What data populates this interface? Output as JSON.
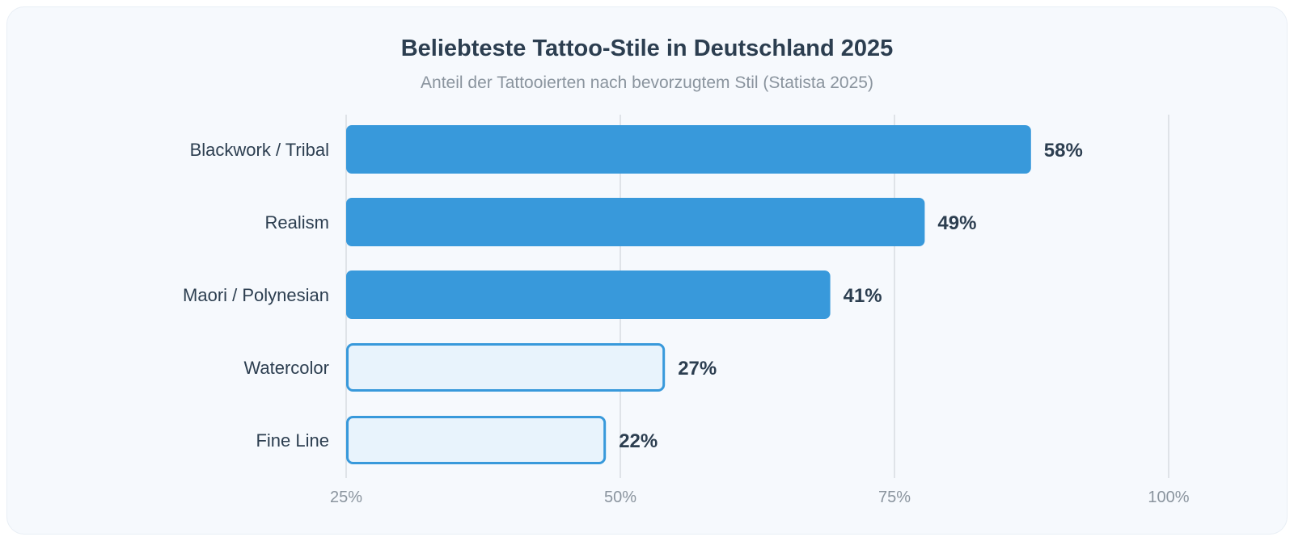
{
  "chart_data": {
    "type": "bar",
    "orientation": "horizontal",
    "title": "Beliebteste Tattoo-Stile in Deutschland 2025",
    "subtitle": "Anteil der Tattooierten nach bevorzugtem Stil (Statista 2025)",
    "categories": [
      "Blackwork / Tribal",
      "Realism",
      "Maori / Polynesian",
      "Watercolor",
      "Fine Line"
    ],
    "values": [
      58,
      49,
      41,
      27,
      22
    ],
    "data_labels": [
      "58%",
      "49%",
      "41%",
      "27%",
      "22%"
    ],
    "bar_styles": [
      "filled",
      "filled",
      "filled",
      "outlined",
      "outlined"
    ],
    "x_ticks": [
      "25%",
      "50%",
      "75%",
      "100%"
    ],
    "grid": true,
    "colors": {
      "bar": "#3899db",
      "outline_fill": "#e8f3fc",
      "text": "#2c3e50",
      "tick": "#8a949e",
      "grid": "#dfe3e8"
    }
  }
}
